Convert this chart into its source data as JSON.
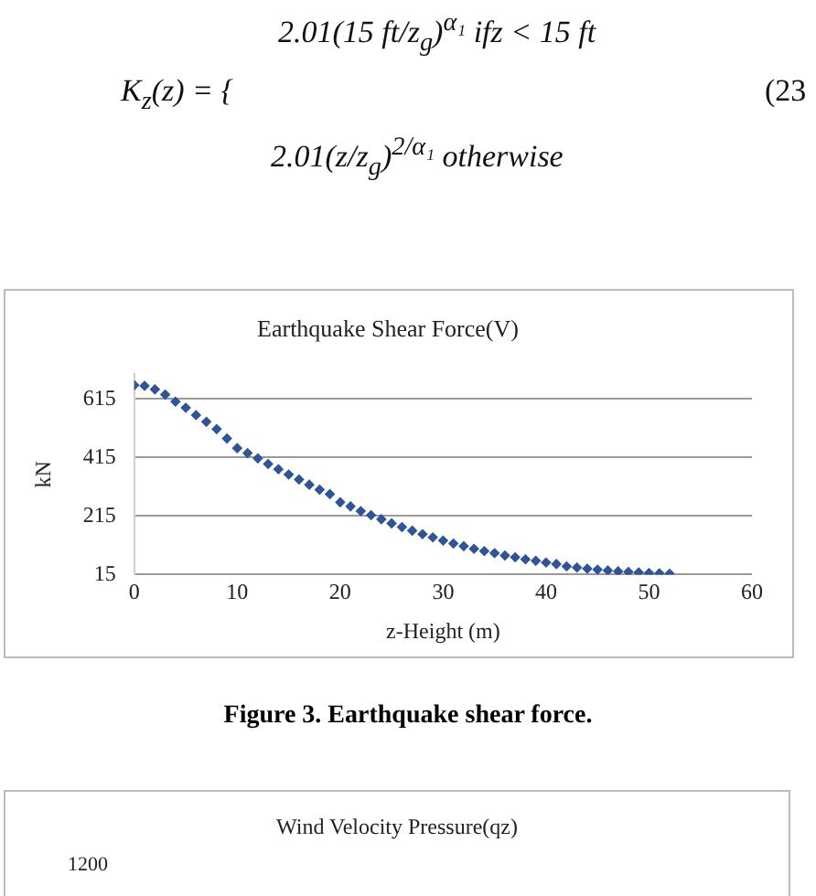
{
  "chart_data": [
    {
      "type": "scatter",
      "title": "Earthquake Shear Force(V)",
      "xlabel": "z-Height (m)",
      "ylabel": "kN",
      "x": [
        0,
        1,
        2,
        3,
        4,
        5,
        6,
        7,
        8,
        9,
        10,
        11,
        12,
        13,
        14,
        15,
        16,
        17,
        18,
        19,
        20,
        21,
        22,
        23,
        24,
        25,
        26,
        27,
        28,
        29,
        30,
        31,
        32,
        33,
        34,
        35,
        36,
        37,
        38,
        39,
        40,
        41,
        42,
        43,
        44,
        45,
        46,
        47,
        48,
        49,
        50,
        51,
        52
      ],
      "series": [
        {
          "color": "#2f5597",
          "values": [
            662,
            660,
            648,
            630,
            606,
            585,
            560,
            537,
            512,
            480,
            447,
            430,
            412,
            393,
            375,
            357,
            340,
            322,
            305,
            290,
            262,
            248,
            232,
            218,
            204,
            190,
            177,
            165,
            153,
            142,
            131,
            121,
            112,
            103,
            95,
            88,
            80,
            74,
            67,
            62,
            56,
            51,
            43,
            39,
            35,
            32,
            29,
            26,
            24,
            22,
            20,
            19,
            18
          ]
        }
      ],
      "xlim": [
        0,
        60
      ],
      "xticks": [
        0,
        10,
        20,
        30,
        40,
        50,
        60
      ],
      "ylim": [
        15,
        700
      ],
      "yticks": [
        15,
        215,
        415,
        615
      ],
      "grid": "y",
      "marker": "diamond",
      "legend": false,
      "annotations": [
        "K$_{z}$(z) = {",
        "2.01(15 ft/z$_{g}$)$^{α₁}$ ifz < 15 ft",
        "2.01(z/z$_{g}$)$^{2/α₁}$   otherwise",
        "(23",
        "Figure 3. Earthquake shear force."
      ]
    },
    {
      "type": "other",
      "title": "Wind Velocity Pressure(qz)",
      "annotations": [
        "1200"
      ]
    }
  ]
}
